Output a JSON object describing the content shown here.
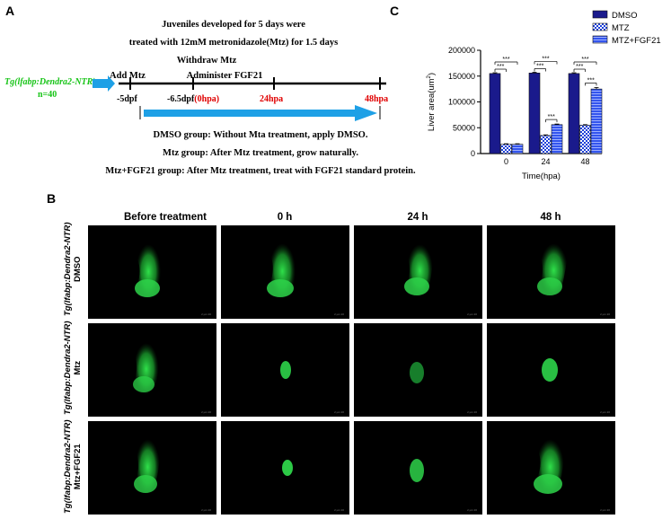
{
  "panel_a": {
    "label": "A",
    "header_line1": "Juveniles developed for 5 days were",
    "header_line2": "treated with 12mM metronidazole(Mtz) for 1.5 days",
    "withdraw": "Withdraw Mtz",
    "add_mtz": "Add Mtz",
    "administer": "Administer FGF21",
    "strain": "Tg(lfabp:Dendra2-NTR)",
    "n": "n=40",
    "t0": "-5dpf",
    "t1_prefix": "-6.5dpf",
    "t1_red": "(0hpa)",
    "t2": "24hpa",
    "t3": "48hpa",
    "group_dmso": "DMSO group: Without Mta treatment, apply DMSO.",
    "group_mtz": "Mtz group: After Mtz treatment, grow naturally.",
    "group_fgf": "Mtz+FGF21 group: After Mtz treatment, treat with FGF21 standard protein.",
    "colors": {
      "arrow": "#1ea0e6",
      "red": "#e00000",
      "green": "#18c418"
    }
  },
  "panel_b": {
    "label": "B",
    "columns": [
      "Before treatment",
      "0 h",
      "24 h",
      "48 h"
    ],
    "rows": [
      {
        "strain": "Tg(lfabp:Dendra2-NTR)",
        "group": "DMSO"
      },
      {
        "strain": "Tg(lfabp:Dendra2-NTR)",
        "group": "Mtz"
      },
      {
        "strain": "Tg(lfabp:Dendra2-NTR)",
        "group": "Mtz+FGF21"
      }
    ],
    "scalebar_text": "2 μm 20"
  },
  "chart_data": {
    "label": "C",
    "type": "bar",
    "ylabel_main": "Liver area(um",
    "ylabel_sup": "2",
    "ylabel_end": ")",
    "xlabel": "Time(hpa)",
    "categories": [
      "0",
      "24",
      "48"
    ],
    "ylim": [
      0,
      200000
    ],
    "yticks": [
      "0",
      "50000",
      "100000",
      "150000",
      "200000"
    ],
    "ytick_values": [
      0,
      50000,
      100000,
      150000,
      200000
    ],
    "series": [
      {
        "name": "DMSO",
        "values": [
          155000,
          156000,
          155000
        ],
        "errors": [
          1500,
          1500,
          1500
        ],
        "color": "#1a1a8c",
        "pattern": "solid"
      },
      {
        "name": "MTZ",
        "values": [
          18000,
          35000,
          55000
        ],
        "errors": [
          1000,
          1200,
          1000
        ],
        "color": "#1a3fd9",
        "pattern": "check"
      },
      {
        "name": "MTZ+FGF21",
        "values": [
          18000,
          56000,
          125000
        ],
        "errors": [
          1000,
          1200,
          3000
        ],
        "color": "#3355ee",
        "pattern": "stripe"
      }
    ],
    "significance": [
      {
        "text": "***"
      },
      {
        "text": "***"
      },
      {
        "text": "***"
      },
      {
        "text": "***"
      },
      {
        "text": "***"
      },
      {
        "text": "***"
      },
      {
        "text": "***"
      },
      {
        "text": "***"
      }
    ]
  }
}
